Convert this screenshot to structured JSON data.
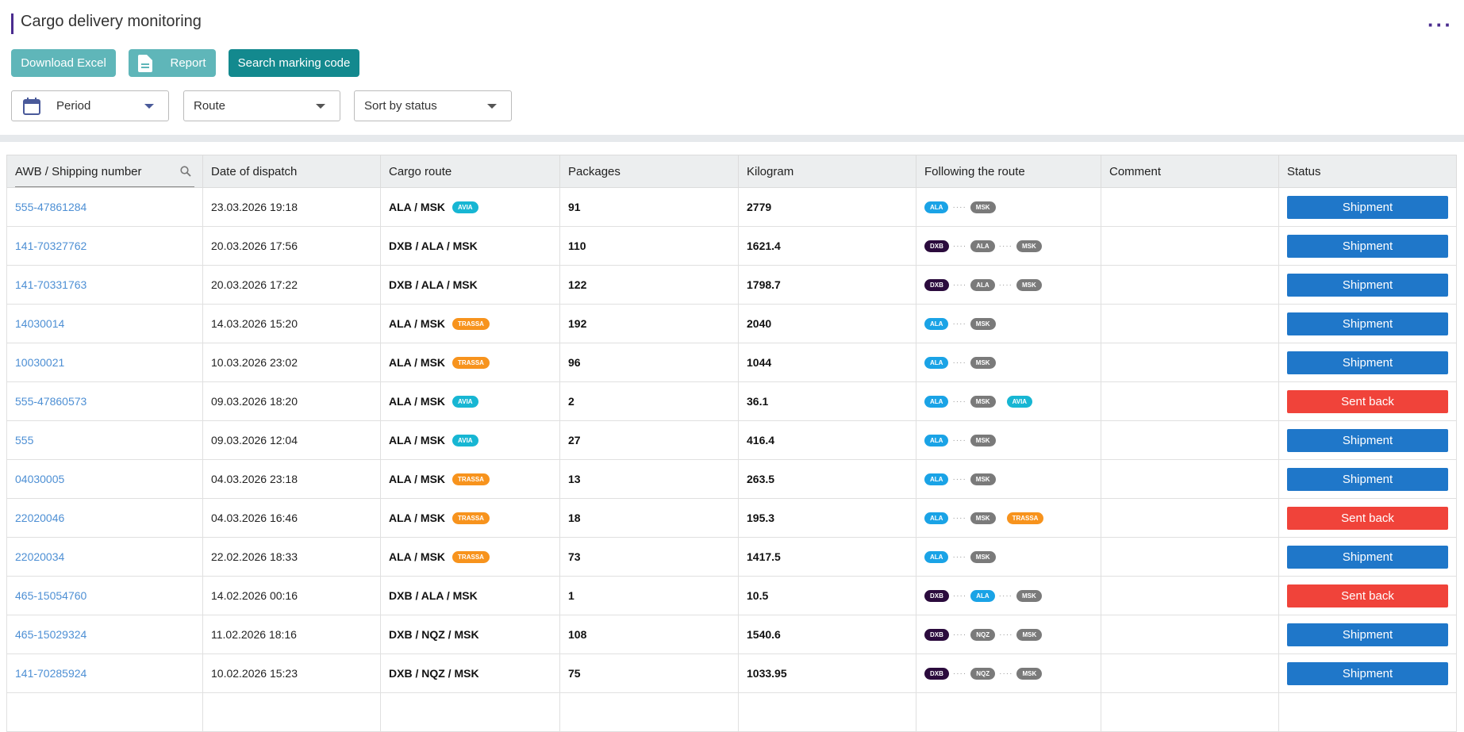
{
  "header": {
    "title": "Cargo delivery monitoring"
  },
  "buttons": [
    "Download Excel",
    "Report",
    "Search marking code"
  ],
  "filters": [
    "Period",
    "Route",
    "Sort by status"
  ],
  "table": {
    "columns": [
      "AWB / Shipping number",
      "Date of dispatch",
      "Cargo route",
      "Packages",
      "Kilogram",
      "Following the route",
      "Comment",
      "Status"
    ],
    "rows": [
      {
        "awb": "555-47861284",
        "date": "23.03.2026 19:18",
        "route": "ALA / MSK",
        "route_tag": {
          "code": "AVIA",
          "color": "#17b6d3"
        },
        "packages": "91",
        "kilogram": "2779",
        "following": [
          {
            "code": "ALA",
            "color": "#1aa3e6"
          },
          {
            "code": "MSK",
            "color": "#7a7a7a"
          }
        ],
        "status": "Shipment",
        "status_color": "#1f77c9"
      },
      {
        "awb": "141-70327762",
        "date": "20.03.2026 17:56",
        "route": "DXB / ALA / MSK",
        "packages": "110",
        "kilogram": "1621.4",
        "following": [
          {
            "code": "DXB",
            "color": "#2b0b3d"
          },
          {
            "code": "ALA",
            "color": "#7a7a7a"
          },
          {
            "code": "MSK",
            "color": "#7a7a7a"
          }
        ],
        "status": "Shipment",
        "status_color": "#1f77c9"
      },
      {
        "awb": "141-70331763",
        "date": "20.03.2026 17:22",
        "route": "DXB / ALA / MSK",
        "packages": "122",
        "kilogram": "1798.7",
        "following": [
          {
            "code": "DXB",
            "color": "#2b0b3d"
          },
          {
            "code": "ALA",
            "color": "#7a7a7a"
          },
          {
            "code": "MSK",
            "color": "#7a7a7a"
          }
        ],
        "status": "Shipment",
        "status_color": "#1f77c9"
      },
      {
        "awb": "14030014",
        "date": "14.03.2026 15:20",
        "route": "ALA / MSK",
        "route_tag": {
          "code": "TRASSA",
          "color": "#f7931d"
        },
        "packages": "192",
        "kilogram": "2040",
        "following": [
          {
            "code": "ALA",
            "color": "#1aa3e6"
          },
          {
            "code": "MSK",
            "color": "#7a7a7a"
          }
        ],
        "status": "Shipment",
        "status_color": "#1f77c9"
      },
      {
        "awb": "10030021",
        "date": "10.03.2026 23:02",
        "route": "ALA / MSK",
        "route_tag": {
          "code": "TRASSA",
          "color": "#f7931d"
        },
        "packages": "96",
        "kilogram": "1044",
        "following": [
          {
            "code": "ALA",
            "color": "#1aa3e6"
          },
          {
            "code": "MSK",
            "color": "#7a7a7a"
          }
        ],
        "status": "Shipment",
        "status_color": "#1f77c9"
      },
      {
        "awb": "555-47860573",
        "date": "09.03.2026 18:20",
        "route": "ALA / MSK",
        "route_tag": {
          "code": "AVIA",
          "color": "#17b6d3"
        },
        "packages": "2",
        "kilogram": "36.1",
        "following": [
          {
            "code": "ALA",
            "color": "#1aa3e6"
          },
          {
            "code": "MSK",
            "color": "#7a7a7a"
          }
        ],
        "following_tag": {
          "code": "AVIA",
          "color": "#17b6d3"
        },
        "status": "Sent back",
        "status_color": "#f0433a"
      },
      {
        "awb": "555",
        "date": "09.03.2026 12:04",
        "route": "ALA / MSK",
        "route_tag": {
          "code": "AVIA",
          "color": "#17b6d3"
        },
        "packages": "27",
        "kilogram": "416.4",
        "following": [
          {
            "code": "ALA",
            "color": "#1aa3e6"
          },
          {
            "code": "MSK",
            "color": "#7a7a7a"
          }
        ],
        "status": "Shipment",
        "status_color": "#1f77c9"
      },
      {
        "awb": "04030005",
        "date": "04.03.2026 23:18",
        "route": "ALA / MSK",
        "route_tag": {
          "code": "TRASSA",
          "color": "#f7931d"
        },
        "packages": "13",
        "kilogram": "263.5",
        "following": [
          {
            "code": "ALA",
            "color": "#1aa3e6"
          },
          {
            "code": "MSK",
            "color": "#7a7a7a"
          }
        ],
        "status": "Shipment",
        "status_color": "#1f77c9"
      },
      {
        "awb": "22020046",
        "date": "04.03.2026 16:46",
        "route": "ALA / MSK",
        "route_tag": {
          "code": "TRASSA",
          "color": "#f7931d"
        },
        "packages": "18",
        "kilogram": "195.3",
        "following": [
          {
            "code": "ALA",
            "color": "#1aa3e6"
          },
          {
            "code": "MSK",
            "color": "#7a7a7a"
          }
        ],
        "following_tag": {
          "code": "TRASSA",
          "color": "#f7931d"
        },
        "status": "Sent back",
        "status_color": "#f0433a"
      },
      {
        "awb": "22020034",
        "date": "22.02.2026 18:33",
        "route": "ALA / MSK",
        "route_tag": {
          "code": "TRASSA",
          "color": "#f7931d"
        },
        "packages": "73",
        "kilogram": "1417.5",
        "following": [
          {
            "code": "ALA",
            "color": "#1aa3e6"
          },
          {
            "code": "MSK",
            "color": "#7a7a7a"
          }
        ],
        "status": "Shipment",
        "status_color": "#1f77c9"
      },
      {
        "awb": "465-15054760",
        "date": "14.02.2026 00:16",
        "route": "DXB / ALA / MSK",
        "packages": "1",
        "kilogram": "10.5",
        "following": [
          {
            "code": "DXB",
            "color": "#2b0b3d"
          },
          {
            "code": "ALA",
            "color": "#1aa3e6"
          },
          {
            "code": "MSK",
            "color": "#7a7a7a"
          }
        ],
        "status": "Sent back",
        "status_color": "#f0433a"
      },
      {
        "awb": "465-15029324",
        "date": "11.02.2026 18:16",
        "route": "DXB / NQZ / MSK",
        "packages": "108",
        "kilogram": "1540.6",
        "following": [
          {
            "code": "DXB",
            "color": "#2b0b3d"
          },
          {
            "code": "NQZ",
            "color": "#7a7a7a"
          },
          {
            "code": "MSK",
            "color": "#7a7a7a"
          }
        ],
        "status": "Shipment",
        "status_color": "#1f77c9"
      },
      {
        "awb": "141-70285924",
        "date": "10.02.2026 15:23",
        "route": "DXB / NQZ / MSK",
        "packages": "75",
        "kilogram": "1033.95",
        "following": [
          {
            "code": "DXB",
            "color": "#2b0b3d"
          },
          {
            "code": "NQZ",
            "color": "#7a7a7a"
          },
          {
            "code": "MSK",
            "color": "#7a7a7a"
          }
        ],
        "status": "Shipment",
        "status_color": "#1f77c9"
      }
    ]
  }
}
